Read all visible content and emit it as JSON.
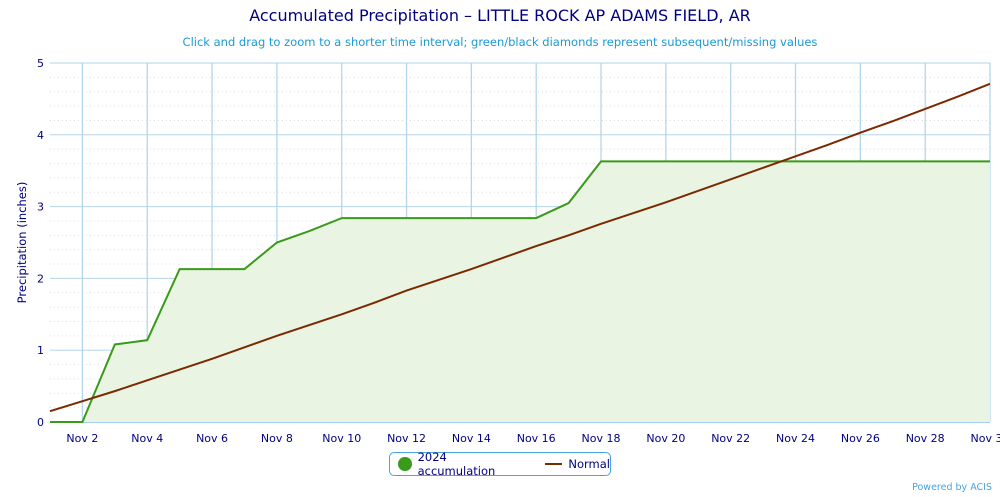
{
  "chart_data": {
    "type": "area",
    "title": "Accumulated Precipitation – LITTLE ROCK AP ADAMS FIELD, AR",
    "subtitle": "Click and drag to zoom to a shorter time interval; green/black diamonds represent subsequent/missing values",
    "ylabel": "Precipitation (inches)",
    "xlabel": "",
    "ylim": [
      0,
      5
    ],
    "yticks": [
      "0",
      "1",
      "2",
      "3",
      "4",
      "5"
    ],
    "x": [
      1,
      2,
      3,
      4,
      5,
      6,
      7,
      8,
      9,
      10,
      11,
      12,
      13,
      14,
      15,
      16,
      17,
      18,
      19,
      20,
      21,
      22,
      23,
      24,
      25,
      26,
      27,
      28,
      29,
      30
    ],
    "xticks": [
      {
        "day": 2,
        "label": "Nov 2"
      },
      {
        "day": 4,
        "label": "Nov 4"
      },
      {
        "day": 6,
        "label": "Nov 6"
      },
      {
        "day": 8,
        "label": "Nov 8"
      },
      {
        "day": 10,
        "label": "Nov 10"
      },
      {
        "day": 12,
        "label": "Nov 12"
      },
      {
        "day": 14,
        "label": "Nov 14"
      },
      {
        "day": 16,
        "label": "Nov 16"
      },
      {
        "day": 18,
        "label": "Nov 18"
      },
      {
        "day": 20,
        "label": "Nov 20"
      },
      {
        "day": 22,
        "label": "Nov 22"
      },
      {
        "day": 24,
        "label": "Nov 24"
      },
      {
        "day": 26,
        "label": "Nov 26"
      },
      {
        "day": 28,
        "label": "Nov 28"
      },
      {
        "day": 30,
        "label": "Nov 30"
      }
    ],
    "series": [
      {
        "name": "2024 accumulation",
        "color": "#3a9a1a",
        "values": [
          0,
          0,
          1.08,
          1.14,
          2.13,
          2.13,
          2.13,
          2.5,
          2.66,
          2.84,
          2.84,
          2.84,
          2.84,
          2.84,
          2.84,
          2.84,
          3.05,
          3.63,
          3.63,
          3.63,
          3.63,
          3.63,
          3.63,
          3.63,
          3.63,
          3.63,
          3.63,
          3.63,
          3.63,
          3.63
        ]
      },
      {
        "name": "Normal",
        "color": "#7a2a00",
        "values": [
          0.15,
          0.29,
          0.43,
          0.58,
          0.73,
          0.88,
          1.04,
          1.2,
          1.35,
          1.5,
          1.66,
          1.83,
          1.98,
          2.13,
          2.29,
          2.45,
          2.6,
          2.76,
          2.91,
          3.06,
          3.22,
          3.38,
          3.54,
          3.7,
          3.86,
          4.03,
          4.19,
          4.36,
          4.53,
          4.71
        ]
      }
    ],
    "legend": "bottom-center",
    "grid": true
  },
  "credit": "Powered by ACIS"
}
